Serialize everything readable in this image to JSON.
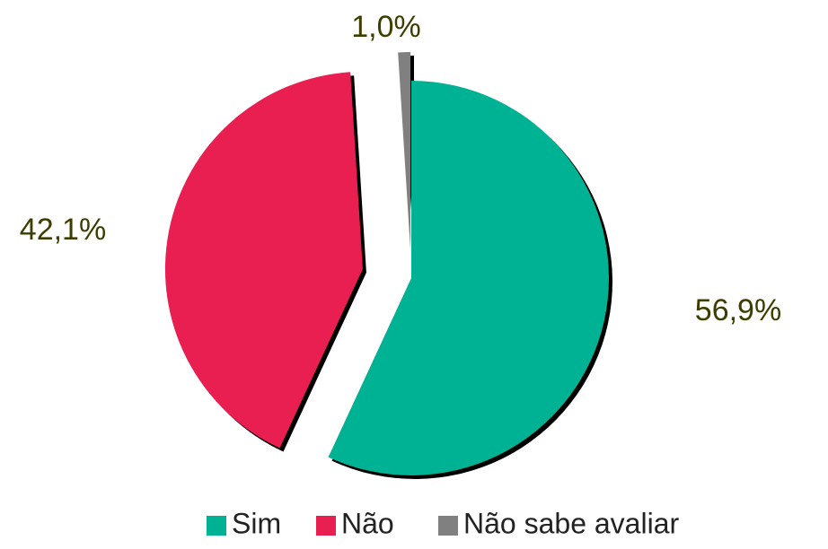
{
  "chart_data": {
    "type": "pie",
    "categories": [
      "Sim",
      "Não",
      "Não sabe avaliar"
    ],
    "values": [
      56.9,
      42.1,
      1.0
    ],
    "value_labels": [
      "56,9%",
      "42,1%",
      "1,0%"
    ],
    "colors": [
      "#00b294",
      "#ea1f51",
      "#808080"
    ],
    "legend": "bottom"
  }
}
